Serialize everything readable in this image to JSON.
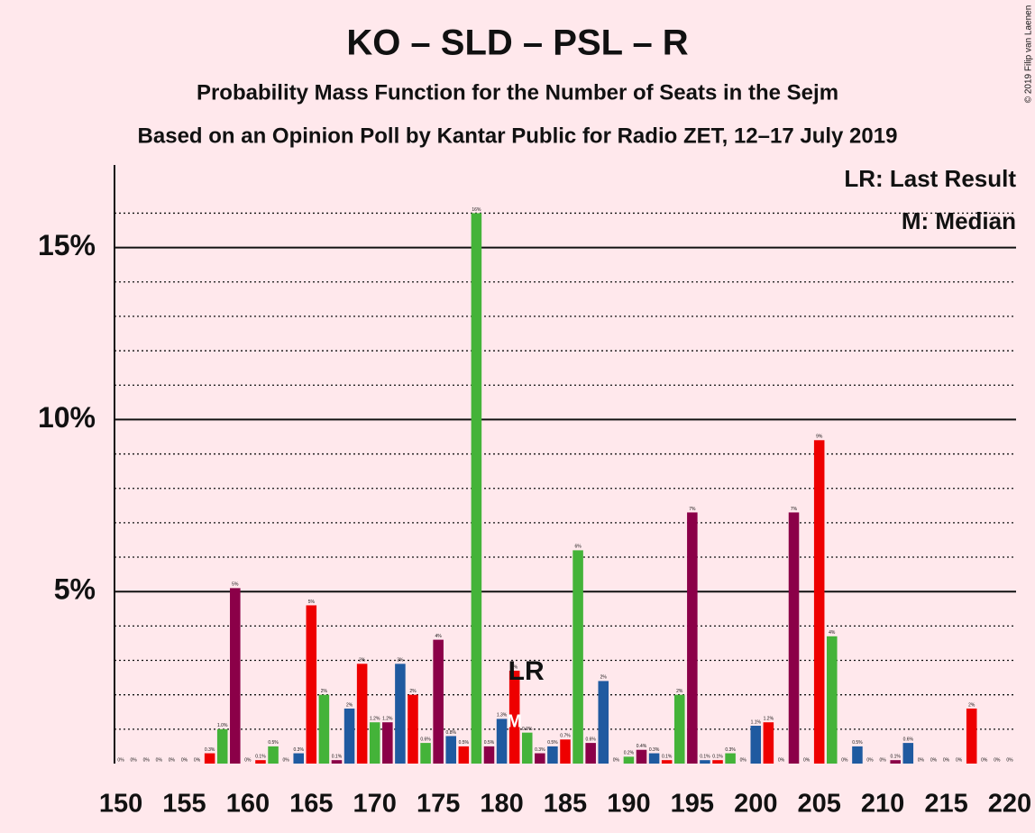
{
  "chart_data": {
    "type": "bar",
    "title": "KO – SLD – PSL – R",
    "subtitle": "Probability Mass Function for the Number of Seats in the Sejm",
    "subtitle2": "Based on an Opinion Poll by Kantar Public for Radio ZET, 12–17 July 2019",
    "copyright": "© 2019 Filip van Laenen",
    "legend_lines": [
      "LR: Last Result",
      "M: Median"
    ],
    "last_result": {
      "x": 181,
      "label": "LR"
    },
    "median": {
      "x": 181,
      "label": "M"
    },
    "color_cycle": [
      "#44b339",
      "#8b0048",
      "#1f5aa0",
      "#ee0000"
    ],
    "x": [
      150,
      151,
      152,
      153,
      154,
      155,
      156,
      157,
      158,
      159,
      160,
      161,
      162,
      163,
      164,
      165,
      166,
      167,
      168,
      169,
      170,
      171,
      172,
      173,
      174,
      175,
      176,
      177,
      178,
      179,
      180,
      181,
      182,
      183,
      184,
      185,
      186,
      187,
      188,
      189,
      190,
      191,
      192,
      193,
      194,
      195,
      196,
      197,
      198,
      199,
      200,
      201,
      202,
      203,
      204,
      205,
      206,
      207,
      208,
      209,
      210,
      211,
      212,
      213,
      214,
      215,
      216,
      217,
      218,
      219,
      220
    ],
    "values": [
      0,
      0,
      0,
      0,
      0,
      0,
      0,
      0.3,
      1.0,
      5.1,
      0,
      0.1,
      0.5,
      0,
      0.3,
      4.6,
      2.0,
      0.1,
      1.6,
      2.9,
      1.2,
      1.2,
      2.9,
      2.0,
      0.6,
      3.6,
      0.8,
      0.5,
      16.0,
      0.5,
      1.3,
      2.7,
      0.9,
      0.3,
      0.5,
      0.7,
      6.2,
      0.6,
      2.4,
      0,
      0.2,
      0.4,
      0.3,
      0.1,
      2.0,
      7.3,
      0.1,
      0.1,
      0.3,
      0,
      1.1,
      1.2,
      0,
      7.3,
      0,
      9.4,
      3.7,
      0,
      0.5,
      0,
      0,
      0.1,
      0.6,
      0,
      0,
      0,
      0,
      1.6,
      0,
      0,
      0
    ],
    "value_labels": [
      "0%",
      "0%",
      "0%",
      "0%",
      "0%",
      "0%",
      "0%",
      "0.3%",
      "1.0%",
      "5%",
      "0%",
      "0.1%",
      "0.5%",
      "0%",
      "0.3%",
      "5%",
      "2%",
      "0.1%",
      "2%",
      "3%",
      "1.2%",
      "1.2%",
      "3%",
      "2%",
      "0.6%",
      "4%",
      "0.8%",
      "0.5%",
      "16%",
      "0.5%",
      "1.3%",
      "3%",
      "0.9%",
      "0.3%",
      "0.5%",
      "0.7%",
      "6%",
      "0.6%",
      "2%",
      "0%",
      "0.2%",
      "0.4%",
      "0.3%",
      "0.1%",
      "2%",
      "7%",
      "0.1%",
      "0.1%",
      "0.3%",
      "0%",
      "1.1%",
      "1.2%",
      "0%",
      "7%",
      "0%",
      "9%",
      "4%",
      "0%",
      "0.5%",
      "0%",
      "0%",
      "0.1%",
      "0.6%",
      "0%",
      "0%",
      "0%",
      "0%",
      "2%",
      "0%",
      "0%",
      "0%"
    ],
    "xlim": [
      149.5,
      220.5
    ],
    "xticks": [
      150,
      155,
      160,
      165,
      170,
      175,
      180,
      185,
      190,
      195,
      200,
      205,
      210,
      215,
      220
    ],
    "ylim": [
      0,
      17.4
    ],
    "yticks": [
      {
        "value": 5,
        "label": "5%"
      },
      {
        "value": 10,
        "label": "10%"
      },
      {
        "value": 15,
        "label": "15%"
      }
    ],
    "minor_yticks": [
      1,
      2,
      3,
      4,
      6,
      7,
      8,
      9,
      11,
      12,
      13,
      14,
      16
    ],
    "grid": true
  }
}
